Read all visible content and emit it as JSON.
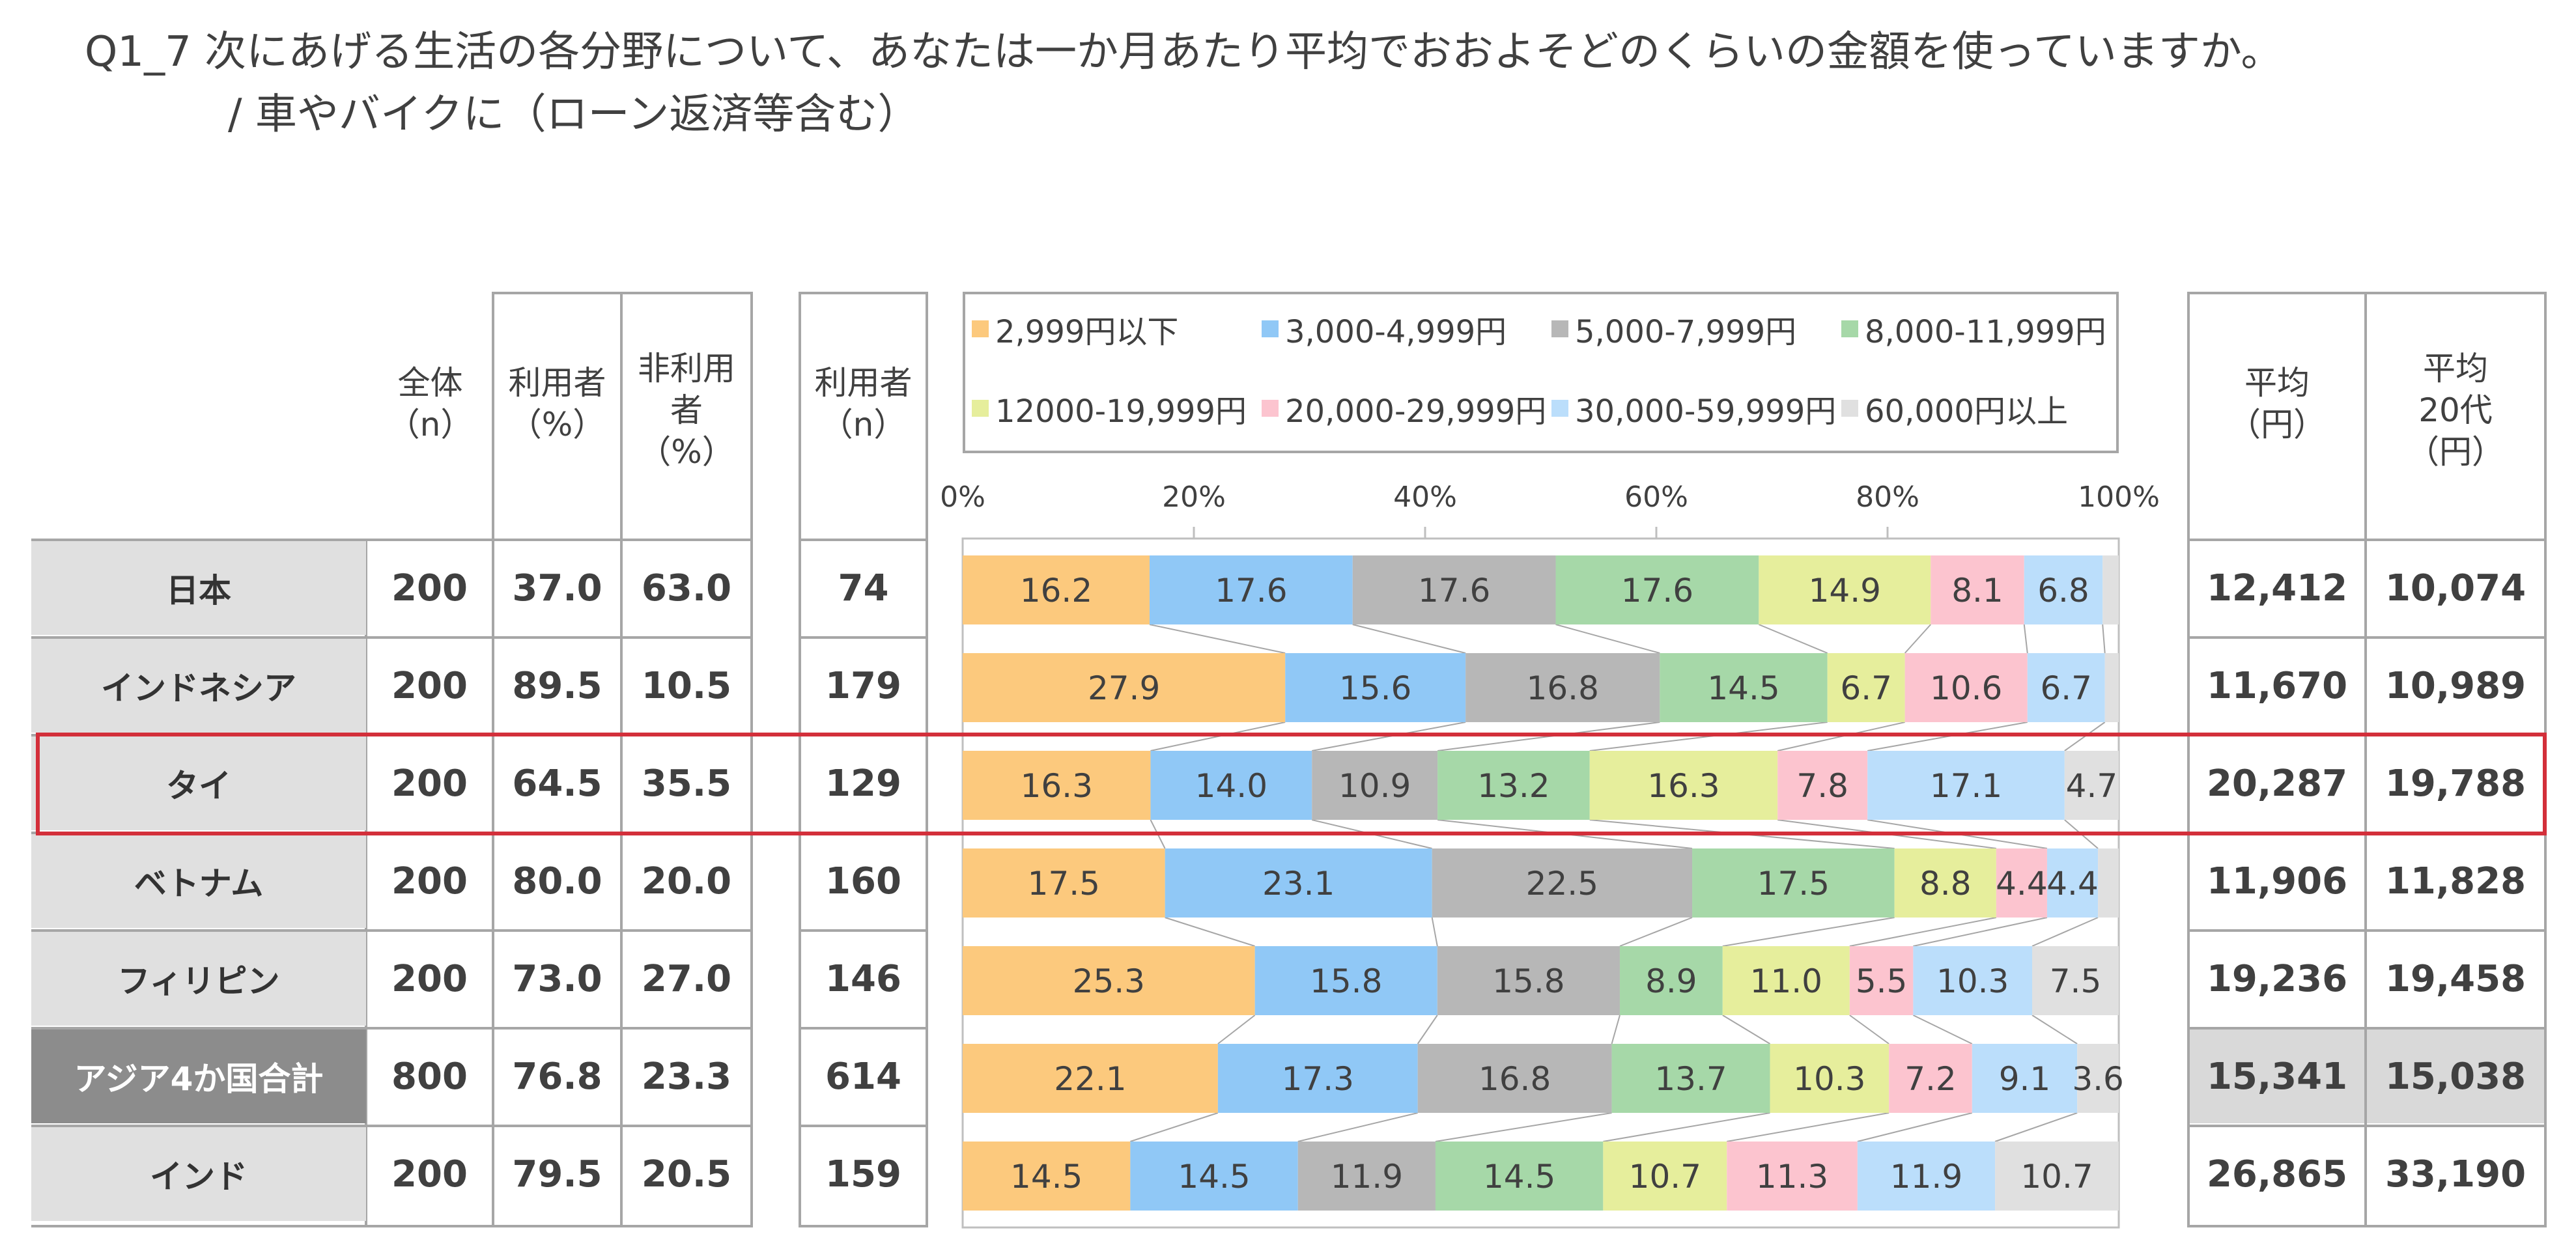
{
  "title": {
    "line1": "Q1_7 次にあげる生活の各分野について、あなたは一か月あたり平均でおおよそどのくらいの金額を使っていますか。",
    "line2": "/ 車やバイクに（ローン返済等含む）"
  },
  "headers": {
    "total_n": "全体\n（n）",
    "user_pct": "利用者\n（%）",
    "nonuser_pct": "非利用\n者\n（%）",
    "user_n": "利用者\n（n）",
    "avg": "平均\n（円）",
    "avg20": "平均\n20代\n（円）"
  },
  "rows": [
    {
      "label": "日本",
      "total": "200",
      "user_pct": "37.0",
      "nonuser_pct": "63.0",
      "user_n": "74",
      "avg": "12,412",
      "avg20": "10,074"
    },
    {
      "label": "インドネシア",
      "total": "200",
      "user_pct": "89.5",
      "nonuser_pct": "10.5",
      "user_n": "179",
      "avg": "11,670",
      "avg20": "10,989"
    },
    {
      "label": "タイ",
      "total": "200",
      "user_pct": "64.5",
      "nonuser_pct": "35.5",
      "user_n": "129",
      "avg": "20,287",
      "avg20": "19,788"
    },
    {
      "label": "ベトナム",
      "total": "200",
      "user_pct": "80.0",
      "nonuser_pct": "20.0",
      "user_n": "160",
      "avg": "11,906",
      "avg20": "11,828"
    },
    {
      "label": "フィリピン",
      "total": "200",
      "user_pct": "73.0",
      "nonuser_pct": "27.0",
      "user_n": "146",
      "avg": "19,236",
      "avg20": "19,458"
    },
    {
      "label": "アジア4か国合計",
      "total": "800",
      "user_pct": "76.8",
      "nonuser_pct": "23.3",
      "user_n": "614",
      "avg": "15,341",
      "avg20": "15,038"
    },
    {
      "label": "インド",
      "total": "200",
      "user_pct": "79.5",
      "nonuser_pct": "20.5",
      "user_n": "159",
      "avg": "26,865",
      "avg20": "33,190"
    }
  ],
  "chart_data": {
    "type": "bar",
    "orientation": "horizontal-stacked-100",
    "title": "",
    "xlabel": "",
    "ylabel": "",
    "xlim": [
      0,
      100
    ],
    "ticks": [
      "0%",
      "20%",
      "40%",
      "60%",
      "80%",
      "100%"
    ],
    "legend_position": "top",
    "categories": [
      "日本",
      "インドネシア",
      "タイ",
      "ベトナム",
      "フィリピン",
      "アジア4か国合計",
      "インド"
    ],
    "series": [
      {
        "name": "2,999円以下",
        "color": "#fcc97d",
        "values": [
          16.2,
          27.9,
          16.3,
          17.5,
          25.3,
          22.1,
          14.5
        ]
      },
      {
        "name": "3,000-4,999円",
        "color": "#90c8f6",
        "values": [
          17.6,
          15.6,
          14.0,
          23.1,
          15.8,
          17.3,
          14.5
        ]
      },
      {
        "name": "5,000-7,999円",
        "color": "#b7b7b7",
        "values": [
          17.6,
          16.8,
          10.9,
          22.5,
          15.8,
          16.8,
          11.9
        ]
      },
      {
        "name": "8,000-11,999円",
        "color": "#a6d8a8",
        "values": [
          17.6,
          14.5,
          13.2,
          17.5,
          8.9,
          13.7,
          14.5
        ]
      },
      {
        "name": "12000-19,999円",
        "color": "#e6ee9c",
        "values": [
          14.9,
          6.7,
          16.3,
          8.8,
          11.0,
          10.3,
          10.7
        ]
      },
      {
        "name": "20,000-29,999円",
        "color": "#fcc4cf",
        "values": [
          8.1,
          10.6,
          7.8,
          4.4,
          5.5,
          7.2,
          11.3
        ]
      },
      {
        "name": "30,000-59,999円",
        "color": "#bbdefb",
        "values": [
          6.8,
          6.7,
          17.1,
          4.4,
          10.3,
          9.1,
          11.9
        ]
      },
      {
        "name": "60,000円以上",
        "color": "#e0e0e0",
        "values": [
          1.4,
          1.2,
          4.7,
          1.8,
          7.5,
          3.6,
          10.7
        ]
      }
    ],
    "shown_labels": [
      [
        "16.2",
        "17.6",
        "17.6",
        "17.6",
        "14.9",
        "8.1",
        "6.8",
        ""
      ],
      [
        "27.9",
        "15.6",
        "16.8",
        "14.5",
        "6.7",
        "10.6",
        "6.7",
        ""
      ],
      [
        "16.3",
        "14.0",
        "10.9",
        "13.2",
        "16.3",
        "7.8",
        "17.1",
        "4.7"
      ],
      [
        "17.5",
        "23.1",
        "22.5",
        "17.5",
        "8.8",
        "4.4",
        "4.4",
        ""
      ],
      [
        "25.3",
        "15.8",
        "15.8",
        "8.9",
        "11.0",
        "5.5",
        "10.3",
        "7.5"
      ],
      [
        "22.1",
        "17.3",
        "16.8",
        "13.7",
        "10.3",
        "7.2",
        "9.1",
        "3.6"
      ],
      [
        "14.5",
        "14.5",
        "11.9",
        "14.5",
        "10.7",
        "11.3",
        "11.9",
        "10.7"
      ]
    ]
  },
  "highlight_row": "タイ"
}
